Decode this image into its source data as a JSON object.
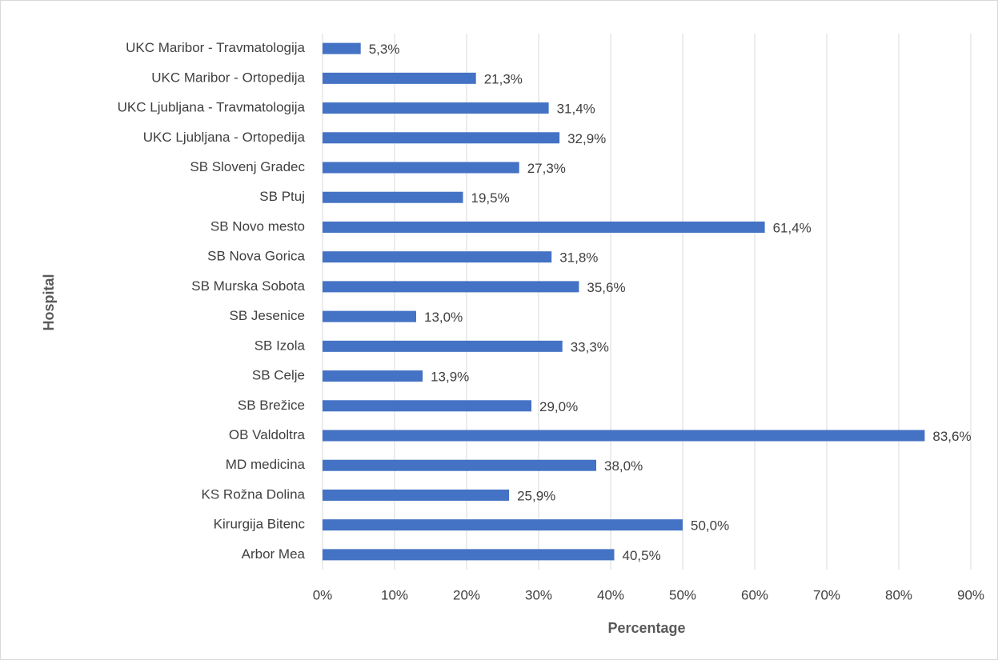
{
  "chart_data": {
    "type": "barh",
    "xlabel": "Percentage",
    "ylabel": "Hospital",
    "categories": [
      "UKC Maribor - Travmatologija",
      "UKC Maribor - Ortopedija",
      "UKC Ljubljana - Travmatologija",
      "UKC Ljubljana - Ortopedija",
      "SB Slovenj Gradec",
      "SB Ptuj",
      "SB Novo mesto",
      "SB Nova Gorica",
      "SB Murska Sobota",
      "SB Jesenice",
      "SB Izola",
      "SB Celje",
      "SB Brežice",
      "OB Valdoltra",
      "MD medicina",
      "KS Rožna Dolina",
      "Kirurgija Bitenc",
      "Arbor Mea"
    ],
    "values": [
      5.3,
      21.3,
      31.4,
      32.9,
      27.3,
      19.5,
      61.4,
      31.8,
      35.6,
      13.0,
      33.3,
      13.9,
      29.0,
      83.6,
      38.0,
      25.9,
      50.0,
      40.5
    ],
    "value_labels": [
      "5,3%",
      "21,3%",
      "31,4%",
      "32,9%",
      "27,3%",
      "19,5%",
      "61,4%",
      "31,8%",
      "35,6%",
      "13,0%",
      "33,3%",
      "13,9%",
      "29,0%",
      "83,6%",
      "38,0%",
      "25,9%",
      "50,0%",
      "40,5%"
    ],
    "color": "#4472c4",
    "xlim": [
      0,
      90
    ],
    "xticks": [
      {
        "value": 0,
        "label": "0%"
      },
      {
        "value": 10,
        "label": "10%"
      },
      {
        "value": 20,
        "label": "20%"
      },
      {
        "value": 30,
        "label": "30%"
      },
      {
        "value": 40,
        "label": "40%"
      },
      {
        "value": 50,
        "label": "50%"
      },
      {
        "value": 60,
        "label": "60%"
      },
      {
        "value": 70,
        "label": "70%"
      },
      {
        "value": 80,
        "label": "80%"
      },
      {
        "value": 90,
        "label": "90%"
      }
    ],
    "grid": true
  }
}
